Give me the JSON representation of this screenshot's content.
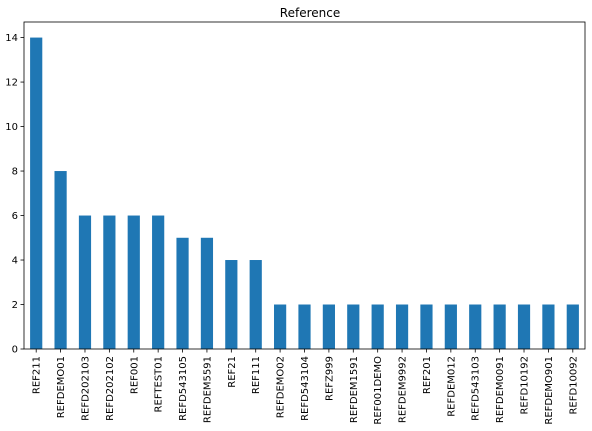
{
  "chart_data": {
    "type": "bar",
    "title": "Reference",
    "xlabel": "",
    "ylabel": "",
    "categories": [
      "REF211",
      "REFDEMO01",
      "REFD202103",
      "REFD202102",
      "REF001",
      "REFTEST01",
      "REFD543105",
      "REFDEM5591",
      "REF21",
      "REF111",
      "REFDEMO02",
      "REFD543104",
      "REFZ999",
      "REFDEM1591",
      "REF001DEMO",
      "REFDEM9992",
      "REF201",
      "REFDEM012",
      "REFD543103",
      "REFDEM0091",
      "REFD10192",
      "REFDEMO901",
      "REFD10092"
    ],
    "values": [
      14,
      8,
      6,
      6,
      6,
      6,
      5,
      5,
      4,
      4,
      2,
      2,
      2,
      2,
      2,
      2,
      2,
      2,
      2,
      2,
      2,
      2,
      2
    ],
    "ylim": [
      0,
      14.7
    ],
    "yticks": [
      0,
      2,
      4,
      6,
      8,
      10,
      12,
      14
    ],
    "bar_color": "#1f77b4",
    "grid": false,
    "legend": "none"
  }
}
